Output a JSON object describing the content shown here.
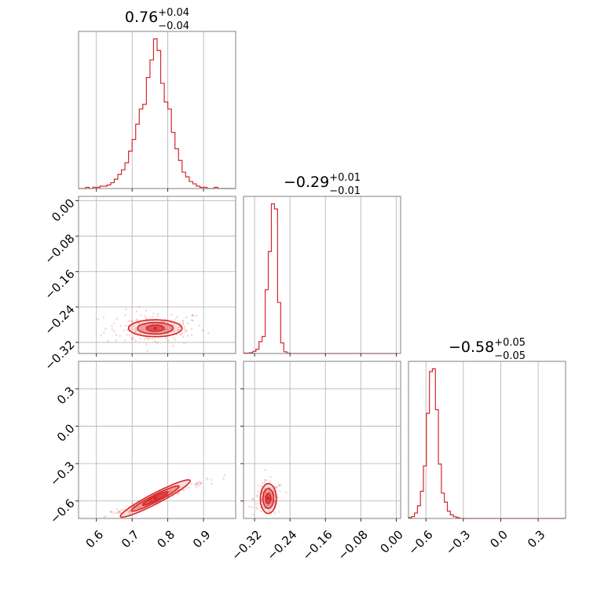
{
  "colors": {
    "main": "#d62728",
    "frame": "#808080",
    "grid": "#b0b0b0"
  },
  "chart_data": {
    "type": "corner",
    "params": [
      {
        "range": [
          0.55,
          0.99
        ],
        "ticks": [
          "0.6",
          "0.7",
          "0.8",
          "0.9"
        ],
        "tickvals": [
          0.6,
          0.7,
          0.8,
          0.9
        ],
        "title": {
          "median": "0.76",
          "plus": "+0.04",
          "minus": "−0.04"
        }
      },
      {
        "range": [
          -0.345,
          0.01
        ],
        "ticks": [
          "−0.32",
          "−0.24",
          "−0.16",
          "−0.08",
          "0.00"
        ],
        "tickvals": [
          -0.32,
          -0.24,
          -0.16,
          -0.08,
          0.0
        ],
        "title": {
          "median": "−0.29",
          "plus": "+0.01",
          "minus": "−0.01"
        }
      },
      {
        "range": [
          -0.74,
          0.52
        ],
        "ticks": [
          "−0.6",
          "−0.3",
          "0.0",
          "0.3"
        ],
        "tickvals": [
          -0.6,
          -0.3,
          0.0,
          0.3
        ],
        "title": {
          "median": "−0.58",
          "plus": "+0.05",
          "minus": "−0.05"
        }
      }
    ],
    "histograms": [
      {
        "param": 0,
        "edges": [
          0.55,
          0.56,
          0.57,
          0.58,
          0.59,
          0.6,
          0.61,
          0.62,
          0.63,
          0.64,
          0.65,
          0.66,
          0.67,
          0.68,
          0.69,
          0.7,
          0.71,
          0.72,
          0.73,
          0.74,
          0.75,
          0.76,
          0.77,
          0.78,
          0.79,
          0.8,
          0.81,
          0.82,
          0.83,
          0.84,
          0.85,
          0.86,
          0.87,
          0.88,
          0.89,
          0.9,
          0.91,
          0.92,
          0.93,
          0.94,
          0.95,
          0.96,
          0.97,
          0.98,
          0.99
        ],
        "counts": [
          0,
          0,
          1,
          0,
          1,
          1,
          2,
          2,
          3,
          5,
          8,
          12,
          16,
          22,
          32,
          42,
          55,
          68,
          72,
          95,
          110,
          128,
          118,
          90,
          74,
          68,
          48,
          34,
          24,
          14,
          10,
          6,
          4,
          2,
          1,
          1,
          0,
          0,
          1,
          0,
          0,
          0,
          0,
          0
        ]
      },
      {
        "param": 1,
        "edges": [
          -0.345,
          -0.338,
          -0.331,
          -0.324,
          -0.317,
          -0.31,
          -0.303,
          -0.296,
          -0.289,
          -0.282,
          -0.275,
          -0.268,
          -0.261,
          -0.254,
          -0.247,
          -0.24,
          -0.233,
          -0.226,
          -0.219,
          -0.212,
          -0.205,
          -0.198,
          -0.191,
          -0.184,
          -0.177,
          -0.17,
          -0.163,
          -0.156,
          -0.149,
          -0.142,
          -0.135,
          -0.128,
          -0.121,
          -0.114,
          -0.107,
          -0.1,
          -0.093,
          -0.086,
          -0.079,
          -0.072,
          -0.065,
          -0.058,
          -0.051,
          -0.044,
          -0.037,
          -0.03,
          -0.023,
          -0.016,
          -0.009,
          -0.002,
          0.005
        ],
        "counts": [
          1,
          1,
          2,
          5,
          10,
          28,
          40,
          150,
          240,
          352,
          340,
          120,
          25,
          4,
          1,
          0,
          0,
          0,
          0,
          0,
          0,
          0,
          0,
          0,
          0,
          0,
          0,
          0,
          0,
          0,
          0,
          0,
          0,
          0,
          0,
          0,
          0,
          0,
          0,
          0,
          0,
          0,
          0,
          0,
          0,
          0,
          0,
          0,
          0,
          0
        ]
      },
      {
        "param": 2,
        "edges": [
          -0.74,
          -0.716,
          -0.692,
          -0.668,
          -0.644,
          -0.62,
          -0.596,
          -0.572,
          -0.548,
          -0.524,
          -0.5,
          -0.476,
          -0.452,
          -0.428,
          -0.404,
          -0.38,
          -0.356,
          -0.332,
          -0.308,
          -0.284,
          -0.26,
          -0.236,
          -0.212,
          -0.188,
          -0.164,
          -0.14,
          -0.116,
          -0.092,
          -0.068,
          -0.044,
          -0.02,
          0.004,
          0.028,
          0.052,
          0.076,
          0.1,
          0.124,
          0.148,
          0.172,
          0.196,
          0.22,
          0.244,
          0.268,
          0.292,
          0.316,
          0.34,
          0.364,
          0.388,
          0.412,
          0.436,
          0.46,
          0.484,
          0.508,
          0.52
        ],
        "counts": [
          1,
          2,
          6,
          14,
          30,
          58,
          116,
          162,
          165,
          120,
          60,
          28,
          18,
          8,
          4,
          2,
          1,
          0,
          0,
          0,
          0,
          0,
          0,
          0,
          0,
          0,
          0,
          0,
          0,
          0,
          0,
          0,
          0,
          0,
          0,
          0,
          0,
          0,
          0,
          0,
          0,
          0,
          0,
          0,
          0,
          0,
          0,
          0,
          0,
          0,
          0,
          0,
          0
        ]
      }
    ],
    "pairs": [
      {
        "x_param": 0,
        "y_param": 1,
        "median": [
          0.765,
          -0.288
        ],
        "contours": [
          {
            "cx": 0.765,
            "cy": -0.288,
            "rx": 0.075,
            "ry": 0.019,
            "rot": 0
          },
          {
            "cx": 0.765,
            "cy": -0.288,
            "rx": 0.05,
            "ry": 0.013,
            "rot": 0
          },
          {
            "cx": 0.765,
            "cy": -0.288,
            "rx": 0.025,
            "ry": 0.007,
            "rot": 0
          }
        ],
        "scatter": {
          "cx": 0.765,
          "cy": -0.288,
          "sx": 0.05,
          "sy": 0.014,
          "rho": 0.0,
          "n": 160
        }
      },
      {
        "x_param": 0,
        "y_param": 2,
        "median": [
          0.765,
          -0.58
        ],
        "contours": [
          {
            "cx": 0.765,
            "cy": -0.58,
            "rx": 0.11,
            "ry": 0.012,
            "rot": 0.87
          },
          {
            "cx": 0.765,
            "cy": -0.58,
            "rx": 0.075,
            "ry": 0.008,
            "rot": 0.87
          },
          {
            "cx": 0.765,
            "cy": -0.58,
            "rx": 0.04,
            "ry": 0.005,
            "rot": 0.87
          }
        ],
        "scatter": {
          "cx": 0.765,
          "cy": -0.58,
          "sx": 0.05,
          "sy": 0.05,
          "rho": 0.98,
          "n": 160
        }
      },
      {
        "x_param": 1,
        "y_param": 2,
        "median": [
          -0.289,
          -0.58
        ],
        "contours": [
          {
            "cx": -0.289,
            "cy": -0.58,
            "rx": 0.018,
            "ry": 0.12,
            "rot": 0
          },
          {
            "cx": -0.289,
            "cy": -0.58,
            "rx": 0.012,
            "ry": 0.08,
            "rot": 0
          },
          {
            "cx": -0.289,
            "cy": -0.58,
            "rx": 0.006,
            "ry": 0.04,
            "rot": 0
          }
        ],
        "scatter": {
          "cx": -0.289,
          "cy": -0.58,
          "sx": 0.012,
          "sy": 0.05,
          "rho": 0.0,
          "n": 140
        }
      }
    ],
    "grid": true
  }
}
